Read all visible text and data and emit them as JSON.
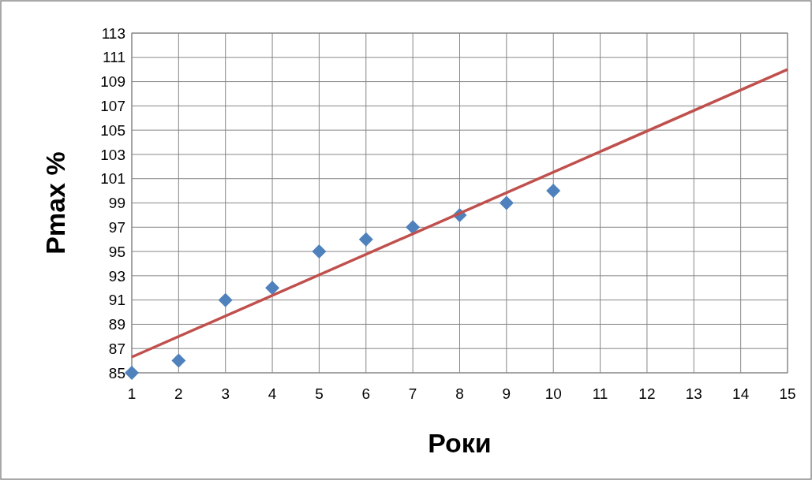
{
  "chart_data": {
    "type": "scatter",
    "xlabel": "Роки",
    "ylabel": "Pmax %",
    "xlim": [
      1,
      15
    ],
    "xticks": [
      1,
      2,
      3,
      4,
      5,
      6,
      7,
      8,
      9,
      10,
      11,
      12,
      13,
      14,
      15
    ],
    "ylim": [
      85,
      113
    ],
    "yticks": [
      85,
      87,
      89,
      91,
      93,
      95,
      97,
      99,
      101,
      103,
      105,
      107,
      109,
      111,
      113
    ],
    "grid": true,
    "series": [
      {
        "color": "#4f81bd",
        "marker": "diamond",
        "x": [
          1,
          2,
          3,
          4,
          5,
          6,
          7,
          8,
          9,
          10
        ],
        "values": [
          85,
          86,
          91,
          92,
          95,
          96,
          97,
          98,
          99,
          100
        ]
      },
      {
        "type": "line",
        "color": "#c0504d",
        "marker": "none",
        "line_style": "solid",
        "x": [
          1,
          15
        ],
        "values": [
          86.3,
          110.0
        ]
      }
    ]
  }
}
